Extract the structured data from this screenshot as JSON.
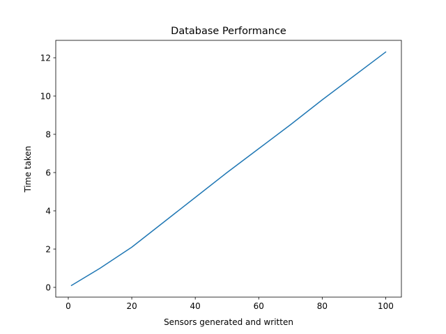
{
  "chart_data": {
    "type": "line",
    "title": "Database Performance",
    "xlabel": "Sensors generated and written",
    "ylabel": "Time taken",
    "xlim": [
      -3.95,
      104.95
    ],
    "ylim": [
      -0.51,
      12.91
    ],
    "xticks": [
      0,
      20,
      40,
      60,
      80,
      100
    ],
    "yticks": [
      0,
      2,
      4,
      6,
      8,
      10,
      12
    ],
    "grid": false,
    "series": [
      {
        "color": "#1f77b4",
        "x": [
          1,
          10,
          20,
          30,
          40,
          50,
          60,
          70,
          80,
          90,
          100
        ],
        "y": [
          0.1,
          1.0,
          2.1,
          3.4,
          4.7,
          6.0,
          7.25,
          8.5,
          9.8,
          11.05,
          12.3
        ]
      }
    ]
  }
}
